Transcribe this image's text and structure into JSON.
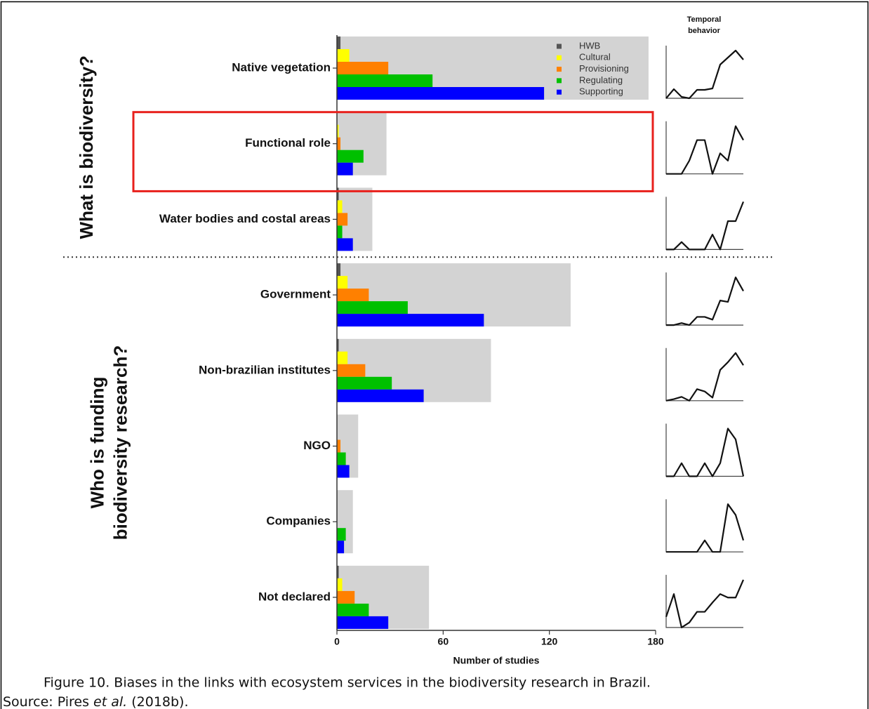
{
  "chart_data": {
    "type": "bar",
    "categories": [
      "Native vegetation",
      "Functional role",
      "Water bodies and costal areas",
      "Government",
      "Non-brazilian institutes",
      "NGO",
      "Companies",
      "Not declared"
    ],
    "totals": [
      176,
      28,
      20,
      132,
      87,
      12,
      9,
      52
    ],
    "totals_color": "#d3d3d3",
    "series": [
      {
        "name": "HWB",
        "color": "#555555",
        "values": [
          2,
          0,
          1,
          2,
          1,
          0,
          0,
          1
        ]
      },
      {
        "name": "Cultural",
        "color": "#ffff00",
        "values": [
          7,
          1,
          3,
          6,
          6,
          0,
          0,
          3
        ]
      },
      {
        "name": "Provisioning",
        "color": "#ff8000",
        "values": [
          29,
          2,
          6,
          18,
          16,
          2,
          0,
          10
        ]
      },
      {
        "name": "Regulating",
        "color": "#00c000",
        "values": [
          54,
          15,
          3,
          40,
          31,
          5,
          5,
          18
        ]
      },
      {
        "name": "Supporting",
        "color": "#0000ff",
        "values": [
          117,
          9,
          9,
          83,
          49,
          7,
          4,
          29
        ]
      }
    ],
    "groups": [
      {
        "label_lines": [
          "What is biodiversity?"
        ],
        "count": 3
      },
      {
        "label_lines": [
          "Who is funding",
          "biodiversity research?"
        ],
        "count": 5
      }
    ],
    "highlight": 1,
    "highlight_color": "#e8201c",
    "xlabel": "Number of studies",
    "xlim": [
      0,
      180
    ],
    "xticks": [
      0,
      60,
      120,
      180
    ],
    "temporal": {
      "title_lines": [
        "Temporal",
        "behavior"
      ],
      "series": [
        [
          0,
          13,
          2,
          0,
          12,
          12,
          14,
          48,
          58,
          68,
          55
        ],
        [
          0,
          0,
          0,
          18,
          46,
          46,
          0,
          28,
          18,
          65,
          46
        ],
        [
          0,
          0,
          10,
          0,
          0,
          0,
          20,
          0,
          38,
          38,
          64
        ],
        [
          0,
          0,
          3,
          0,
          12,
          12,
          8,
          36,
          34,
          70,
          50
        ],
        [
          0,
          2,
          5,
          0,
          15,
          12,
          4,
          40,
          50,
          62,
          46
        ],
        [
          0,
          0,
          17,
          0,
          0,
          17,
          0,
          17,
          62,
          48,
          0
        ],
        [
          0,
          0,
          0,
          0,
          0,
          15,
          0,
          0,
          62,
          48,
          15
        ],
        [
          15,
          47,
          0,
          7,
          22,
          22,
          35,
          47,
          42,
          42,
          67
        ]
      ]
    }
  },
  "caption": {
    "line1": "Figure 10. Biases in the links with ecosystem services in the biodiversity research in Brazil.",
    "source_prefix": "Source: Pires ",
    "source_italic": "et al.",
    "source_suffix": " (2018b)."
  }
}
